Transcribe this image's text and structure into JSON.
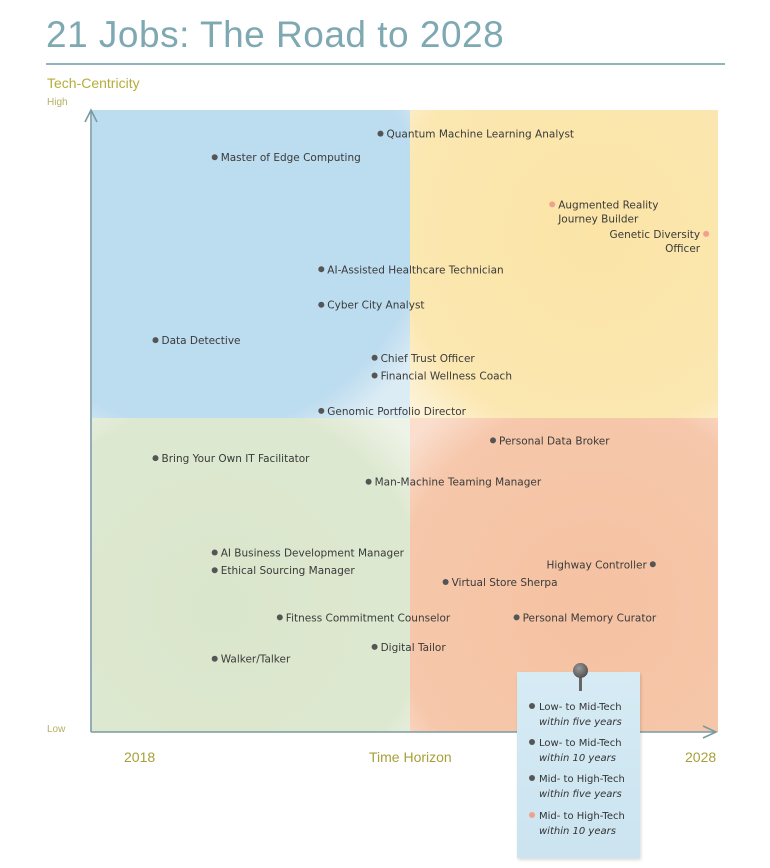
{
  "header": {
    "title": "21 Jobs: The Road to 2028"
  },
  "colors": {
    "title": "#7ea8b2",
    "axis_label": "#b5ad3b",
    "quad_top_left": "#bcdcef",
    "quad_top_right": "#fbe7b1",
    "quad_bottom_left": "#dde8d0",
    "quad_bottom_right": "#f6c7aa",
    "dot_default": "#555555",
    "dot_highlight": "#f0a08f"
  },
  "chart_data": {
    "type": "scatter",
    "title": "21 Jobs: The Road to 2028",
    "ylabel": "Tech-Centricity",
    "xlabel": "Time Horizon",
    "x_ticks": [
      "2018",
      "2028"
    ],
    "y_ticks": [
      "High",
      "Low"
    ],
    "xlim": [
      0,
      1
    ],
    "ylim": [
      0,
      1
    ],
    "grid": false,
    "legend_position": "bottom-right",
    "legend": [
      {
        "line1": "Low- to Mid-Tech",
        "line2": "within five years",
        "category": "low-mid-5"
      },
      {
        "line1": "Low- to Mid-Tech",
        "line2": "within 10 years",
        "category": "low-mid-10"
      },
      {
        "line1": "Mid- to High-Tech",
        "line2": "within five years",
        "category": "mid-high-5"
      },
      {
        "line1": "Mid- to High-Tech",
        "line2": "within 10 years",
        "category": "mid-high-10"
      }
    ],
    "points": [
      {
        "label": "Quantum Machine Learning Analyst",
        "x": 0.44,
        "y": 0.96,
        "side": "right",
        "category": "mid-high-5"
      },
      {
        "label": "Master of Edge Computing",
        "x": 0.16,
        "y": 0.92,
        "side": "right",
        "category": "mid-high-5"
      },
      {
        "label": "Augmented Reality\nJourney Builder",
        "x": 0.73,
        "y": 0.84,
        "side": "right",
        "category": "mid-high-10"
      },
      {
        "label": "Genetic Diversity\nOfficer",
        "x": 0.99,
        "y": 0.79,
        "side": "left",
        "category": "mid-high-10"
      },
      {
        "label": "AI-Assisted Healthcare Technician",
        "x": 0.34,
        "y": 0.73,
        "side": "right",
        "category": "mid-high-5"
      },
      {
        "label": "Cyber City Analyst",
        "x": 0.34,
        "y": 0.67,
        "side": "right",
        "category": "mid-high-5"
      },
      {
        "label": "Data Detective",
        "x": 0.06,
        "y": 0.61,
        "side": "right",
        "category": "mid-high-5"
      },
      {
        "label": "Chief Trust Officer",
        "x": 0.43,
        "y": 0.58,
        "side": "right",
        "category": "mid-high-5"
      },
      {
        "label": "Financial Wellness Coach",
        "x": 0.43,
        "y": 0.55,
        "side": "right",
        "category": "mid-high-5"
      },
      {
        "label": "Genomic Portfolio Director",
        "x": 0.34,
        "y": 0.49,
        "side": "right",
        "category": "mid-high-5"
      },
      {
        "label": "Personal Data Broker",
        "x": 0.63,
        "y": 0.44,
        "side": "right",
        "category": "low-mid-10"
      },
      {
        "label": "Bring Your Own IT Facilitator",
        "x": 0.06,
        "y": 0.41,
        "side": "right",
        "category": "low-mid-5"
      },
      {
        "label": "Man-Machine Teaming Manager",
        "x": 0.42,
        "y": 0.37,
        "side": "right",
        "category": "low-mid-5"
      },
      {
        "label": "AI Business Development Manager",
        "x": 0.16,
        "y": 0.25,
        "side": "right",
        "category": "low-mid-5"
      },
      {
        "label": "Ethical Sourcing Manager",
        "x": 0.16,
        "y": 0.22,
        "side": "right",
        "category": "low-mid-5"
      },
      {
        "label": "Highway Controller",
        "x": 0.9,
        "y": 0.23,
        "side": "left",
        "category": "low-mid-10"
      },
      {
        "label": "Virtual Store Sherpa",
        "x": 0.55,
        "y": 0.2,
        "side": "right",
        "category": "low-mid-10"
      },
      {
        "label": "Fitness Commitment Counselor",
        "x": 0.27,
        "y": 0.14,
        "side": "right",
        "category": "low-mid-5"
      },
      {
        "label": "Personal Memory Curator",
        "x": 0.67,
        "y": 0.14,
        "side": "right",
        "category": "low-mid-10"
      },
      {
        "label": "Digital Tailor",
        "x": 0.43,
        "y": 0.09,
        "side": "right",
        "category": "low-mid-5"
      },
      {
        "label": "Walker/Talker",
        "x": 0.16,
        "y": 0.07,
        "side": "right",
        "category": "low-mid-5"
      }
    ]
  }
}
